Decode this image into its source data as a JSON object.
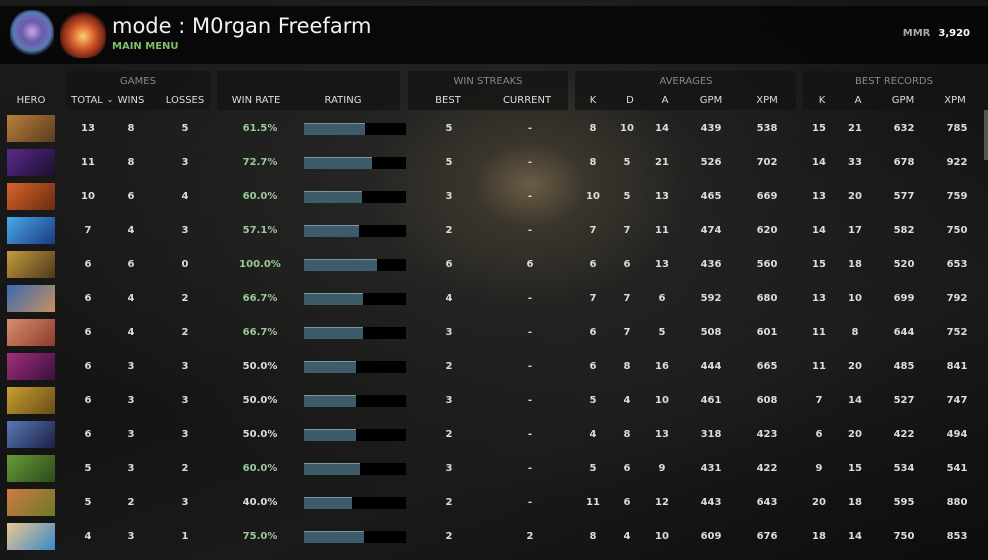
{
  "header": {
    "title": "mode : M0rgan Freefarm",
    "subtitle": "MAIN MENU",
    "mmr_label": "MMR",
    "mmr_value": "3,920"
  },
  "groups": {
    "games": "GAMES",
    "streaks": "WIN STREAKS",
    "averages": "AVERAGES",
    "best": "BEST RECORDS"
  },
  "columns": {
    "hero": "HERO",
    "total": "TOTAL",
    "sort_icon": "chevron-down-icon",
    "wins": "WINS",
    "losses": "LOSSES",
    "winrate": "WIN RATE",
    "rating": "RATING",
    "best": "BEST",
    "current": "CURRENT",
    "k": "K",
    "d": "D",
    "a": "A",
    "gpm": "GPM",
    "xpm": "XPM",
    "bk": "K",
    "ba": "A",
    "bgpm": "GPM",
    "bxpm": "XPM"
  },
  "colors": {
    "win_good": "#9cc99a",
    "bar": "#3e5b6a"
  },
  "rows": [
    {
      "hero": [
        "#b8803a",
        "#5a3a20"
      ],
      "total": "13",
      "wins": "8",
      "losses": "5",
      "winrate": "61.5%",
      "rating": 0.6,
      "best": "5",
      "current": "-",
      "k": "8",
      "d": "10",
      "a": "14",
      "gpm": "439",
      "xpm": "538",
      "bk": "15",
      "ba": "21",
      "bgpm": "632",
      "bxpm": "785"
    },
    {
      "hero": [
        "#5a2a8a",
        "#1a1030"
      ],
      "total": "11",
      "wins": "8",
      "losses": "3",
      "winrate": "72.7%",
      "rating": 0.67,
      "best": "5",
      "current": "-",
      "k": "8",
      "d": "5",
      "a": "21",
      "gpm": "526",
      "xpm": "702",
      "bk": "14",
      "ba": "33",
      "bgpm": "678",
      "bxpm": "922"
    },
    {
      "hero": [
        "#d8642a",
        "#6a2a10"
      ],
      "total": "10",
      "wins": "6",
      "losses": "4",
      "winrate": "60.0%",
      "rating": 0.57,
      "best": "3",
      "current": "-",
      "k": "10",
      "d": "5",
      "a": "13",
      "gpm": "465",
      "xpm": "669",
      "bk": "13",
      "ba": "20",
      "bgpm": "577",
      "bxpm": "759"
    },
    {
      "hero": [
        "#4aa8e8",
        "#1a3a80"
      ],
      "total": "7",
      "wins": "4",
      "losses": "3",
      "winrate": "57.1%",
      "rating": 0.54,
      "best": "2",
      "current": "-",
      "k": "7",
      "d": "7",
      "a": "11",
      "gpm": "474",
      "xpm": "620",
      "bk": "14",
      "ba": "17",
      "bgpm": "582",
      "bxpm": "750"
    },
    {
      "hero": [
        "#c89a40",
        "#4a3a1a"
      ],
      "total": "6",
      "wins": "6",
      "losses": "0",
      "winrate": "100.0%",
      "rating": 0.72,
      "best": "6",
      "current": "6",
      "k": "6",
      "d": "6",
      "a": "13",
      "gpm": "436",
      "xpm": "560",
      "bk": "15",
      "ba": "18",
      "bgpm": "520",
      "bxpm": "653"
    },
    {
      "hero": [
        "#3a6ab0",
        "#c89060"
      ],
      "total": "6",
      "wins": "4",
      "losses": "2",
      "winrate": "66.7%",
      "rating": 0.58,
      "best": "4",
      "current": "-",
      "k": "7",
      "d": "7",
      "a": "6",
      "gpm": "592",
      "xpm": "680",
      "bk": "13",
      "ba": "10",
      "bgpm": "699",
      "bxpm": "792"
    },
    {
      "hero": [
        "#d89070",
        "#8a3a2a"
      ],
      "total": "6",
      "wins": "4",
      "losses": "2",
      "winrate": "66.7%",
      "rating": 0.58,
      "best": "3",
      "current": "-",
      "k": "6",
      "d": "7",
      "a": "5",
      "gpm": "508",
      "xpm": "601",
      "bk": "11",
      "ba": "8",
      "bgpm": "644",
      "bxpm": "752"
    },
    {
      "hero": [
        "#a0307a",
        "#3a1040"
      ],
      "total": "6",
      "wins": "3",
      "losses": "3",
      "winrate": "50.0%",
      "rating": 0.51,
      "best": "2",
      "current": "-",
      "k": "6",
      "d": "8",
      "a": "16",
      "gpm": "444",
      "xpm": "665",
      "bk": "11",
      "ba": "20",
      "bgpm": "485",
      "bxpm": "841"
    },
    {
      "hero": [
        "#c8a030",
        "#6a4a1a"
      ],
      "total": "6",
      "wins": "3",
      "losses": "3",
      "winrate": "50.0%",
      "rating": 0.51,
      "best": "3",
      "current": "-",
      "k": "5",
      "d": "4",
      "a": "10",
      "gpm": "461",
      "xpm": "608",
      "bk": "7",
      "ba": "14",
      "bgpm": "527",
      "bxpm": "747"
    },
    {
      "hero": [
        "#5a78b8",
        "#1a2040"
      ],
      "total": "6",
      "wins": "3",
      "losses": "3",
      "winrate": "50.0%",
      "rating": 0.51,
      "best": "2",
      "current": "-",
      "k": "4",
      "d": "8",
      "a": "13",
      "gpm": "318",
      "xpm": "423",
      "bk": "6",
      "ba": "20",
      "bgpm": "422",
      "bxpm": "494"
    },
    {
      "hero": [
        "#6a9a3a",
        "#2a4a1a"
      ],
      "total": "5",
      "wins": "3",
      "losses": "2",
      "winrate": "60.0%",
      "rating": 0.55,
      "best": "3",
      "current": "-",
      "k": "5",
      "d": "6",
      "a": "9",
      "gpm": "431",
      "xpm": "422",
      "bk": "9",
      "ba": "15",
      "bgpm": "534",
      "bxpm": "541"
    },
    {
      "hero": [
        "#d07a40",
        "#6a7a2a"
      ],
      "total": "5",
      "wins": "2",
      "losses": "3",
      "winrate": "40.0%",
      "rating": 0.47,
      "best": "2",
      "current": "-",
      "k": "11",
      "d": "6",
      "a": "12",
      "gpm": "443",
      "xpm": "643",
      "bk": "20",
      "ba": "18",
      "bgpm": "595",
      "bxpm": "880"
    },
    {
      "hero": [
        "#e8c890",
        "#3a88c8"
      ],
      "total": "4",
      "wins": "3",
      "losses": "1",
      "winrate": "75.0%",
      "rating": 0.59,
      "best": "2",
      "current": "2",
      "k": "8",
      "d": "4",
      "a": "10",
      "gpm": "609",
      "xpm": "676",
      "bk": "18",
      "ba": "14",
      "bgpm": "750",
      "bxpm": "853"
    }
  ]
}
